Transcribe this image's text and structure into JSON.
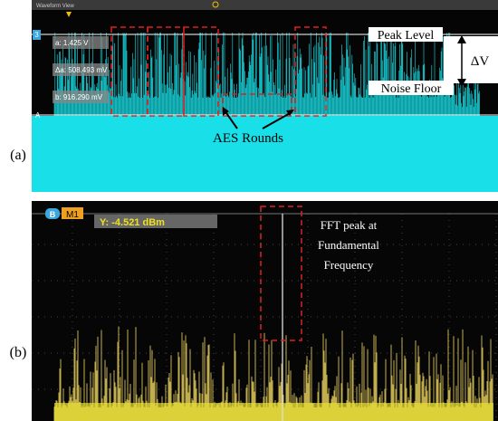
{
  "panel_a": {
    "label": "(a)",
    "header": "Waveform View",
    "channel": "3",
    "cursor_a": "A",
    "cursor_b": "B",
    "readouts": [
      "a: 1.425 V",
      "Δa: 508.493 mV",
      "b: 916.290 mV"
    ],
    "annotations": {
      "peak": "Peak Level",
      "delta": "ΔV",
      "noise": "Noise Floor",
      "rounds": "AES Rounds"
    }
  },
  "panel_b": {
    "label": "(b)",
    "badges": [
      "B",
      "M1"
    ],
    "readout": "Y: -4.521 dBm",
    "annotation": [
      "FFT peak at",
      "Fundamental",
      "Frequency"
    ]
  }
}
